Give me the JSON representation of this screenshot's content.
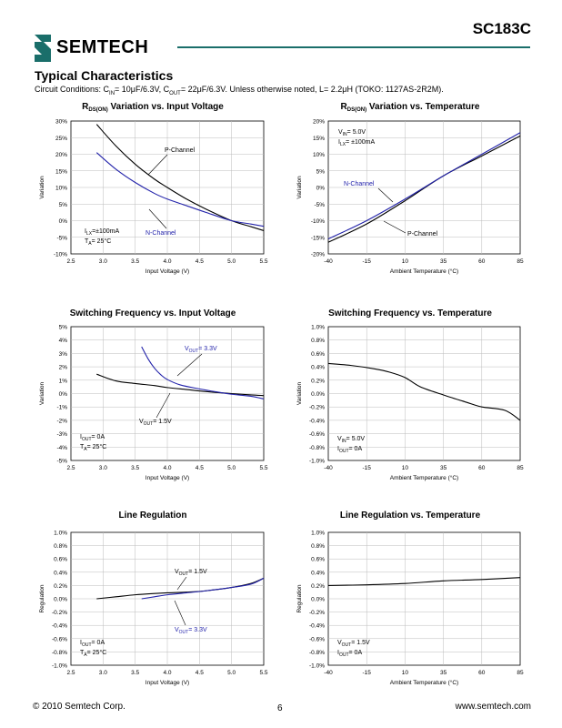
{
  "header": {
    "part_number": "SC183C",
    "logo_text": "SEMTECH",
    "brand_color": "#1a6e6a"
  },
  "section": {
    "title": "Typical Characteristics",
    "conditions": "Circuit Conditions: C₀ ... (see conditions parts)",
    "conditions_parts": {
      "a": "Circuit Conditions: C",
      "a_sub": "IN",
      "b": "= 10μF/6.3V, C",
      "b_sub": "OUT",
      "c": "= 22μF/6.3V. Unless otherwise noted, L= 2.2μH (TOKO: 1127AS-2R2M)."
    }
  },
  "footer": {
    "copyright": "© 2010 Semtech Corp.",
    "page": "6",
    "website": "www.semtech.com"
  },
  "chart_data": [
    {
      "type": "line",
      "title": "R",
      "title_sub": "DS(ON)",
      "title_rest": " Variation vs. Input Voltage",
      "xlabel": "Input Voltage (V)",
      "ylabel": "Variation",
      "x_ticks": [
        "2.5",
        "3.0",
        "3.5",
        "4.0",
        "4.5",
        "5.0",
        "5.5"
      ],
      "y_ticks": [
        "30%",
        "25%",
        "20%",
        "15%",
        "10%",
        "5%",
        "0%",
        "-5%",
        "-10%"
      ],
      "xlim": [
        2.5,
        5.5
      ],
      "ylim": [
        -10,
        30
      ],
      "annotations": [
        "Iₗₓ=±100mA",
        "Tₐ= 25°C"
      ],
      "ann_lines": [
        "I",
        "LX",
        "=±100mA",
        "T",
        "A",
        "= 25°C"
      ],
      "series": [
        {
          "name": "P-Channel",
          "color": "#000000",
          "x": [
            2.9,
            3.2,
            3.5,
            3.8,
            4.0,
            4.3,
            4.6,
            5.0,
            5.3,
            5.5
          ],
          "y": [
            29,
            22.5,
            17,
            12.5,
            10,
            6.5,
            3.5,
            0,
            -1.8,
            -3
          ]
        },
        {
          "name": "N-Channel",
          "color": "#2222aa",
          "x": [
            2.9,
            3.2,
            3.5,
            3.8,
            4.0,
            4.3,
            4.6,
            5.0,
            5.3,
            5.5
          ],
          "y": [
            20.5,
            15.5,
            11.5,
            8.2,
            6.5,
            4.5,
            2.5,
            0,
            -1,
            -1.7
          ]
        }
      ]
    },
    {
      "type": "line",
      "title": "R",
      "title_sub": "DS(ON)",
      "title_rest": " Variation vs. Temperature",
      "xlabel": "Ambient Temperature (°C)",
      "ylabel": "Variation",
      "x_ticks": [
        "-40",
        "-15",
        "10",
        "35",
        "60",
        "85"
      ],
      "y_ticks": [
        "20%",
        "15%",
        "10%",
        "5%",
        "0%",
        "-5%",
        "-10%",
        "-15%",
        "-20%"
      ],
      "xlim": [
        -40,
        85
      ],
      "ylim": [
        -20,
        20
      ],
      "series": [
        {
          "name": "P-Channel",
          "color": "#000000",
          "x": [
            -40,
            -15,
            10,
            35,
            60,
            85
          ],
          "y": [
            -16.5,
            -11,
            -4,
            3.5,
            9.5,
            15.5
          ]
        },
        {
          "name": "N-Channel",
          "color": "#2222aa",
          "x": [
            -40,
            -15,
            10,
            35,
            60,
            85
          ],
          "y": [
            -15.5,
            -10,
            -3.5,
            3.5,
            10,
            16.5
          ]
        }
      ]
    },
    {
      "type": "line",
      "title": "Switching Frequency vs. Input Voltage",
      "xlabel": "Input Voltage (V)",
      "ylabel": "Variation",
      "x_ticks": [
        "2.5",
        "3.0",
        "3.5",
        "4.0",
        "4.5",
        "5.0",
        "5.5"
      ],
      "y_ticks": [
        "5%",
        "4%",
        "3%",
        "2%",
        "1%",
        "0%",
        "-1%",
        "-2%",
        "-3%",
        "-4%",
        "-5%"
      ],
      "xlim": [
        2.5,
        5.5
      ],
      "ylim": [
        -5,
        5
      ],
      "series": [
        {
          "name": "V_OUT= 1.5V",
          "color": "#000000",
          "x": [
            2.9,
            3.2,
            3.5,
            3.8,
            4.0,
            4.3,
            4.6,
            5.0,
            5.3,
            5.5
          ],
          "y": [
            1.45,
            0.95,
            0.75,
            0.6,
            0.45,
            0.3,
            0.15,
            0,
            -0.1,
            -0.15
          ]
        },
        {
          "name": "V_OUT= 3.3V",
          "color": "#2222aa",
          "x": [
            3.6,
            3.7,
            3.8,
            3.9,
            4.0,
            4.2,
            4.5,
            4.8,
            5.0,
            5.3,
            5.5
          ],
          "y": [
            3.5,
            2.6,
            1.9,
            1.4,
            1.05,
            0.65,
            0.35,
            0.1,
            -0.05,
            -0.2,
            -0.4
          ]
        }
      ]
    },
    {
      "type": "line",
      "title": "Switching Frequency vs. Temperature",
      "xlabel": "Ambient Temperature (°C)",
      "ylabel": "Variation",
      "x_ticks": [
        "-40",
        "-15",
        "10",
        "35",
        "60",
        "85"
      ],
      "y_ticks": [
        "1.0%",
        "0.8%",
        "0.6%",
        "0.4%",
        "0.2%",
        "0.0%",
        "-0.2%",
        "-0.4%",
        "-0.6%",
        "-0.8%",
        "-1.0%"
      ],
      "xlim": [
        -40,
        85
      ],
      "ylim": [
        -1,
        1
      ],
      "series": [
        {
          "name": "",
          "color": "#000000",
          "x": [
            -40,
            -25,
            -10,
            0,
            10,
            20,
            35,
            50,
            60,
            75,
            85
          ],
          "y": [
            0.45,
            0.42,
            0.37,
            0.32,
            0.24,
            0.1,
            -0.02,
            -0.13,
            -0.2,
            -0.25,
            -0.4
          ]
        }
      ]
    },
    {
      "type": "line",
      "title": "Line Regulation",
      "xlabel": "Input Voltage (V)",
      "ylabel": "Regulation",
      "x_ticks": [
        "2.5",
        "3.0",
        "3.5",
        "4.0",
        "4.5",
        "5.0",
        "5.5"
      ],
      "y_ticks": [
        "1.0%",
        "0.8%",
        "0.6%",
        "0.4%",
        "0.2%",
        "0.0%",
        "-0.2%",
        "-0.4%",
        "-0.6%",
        "-0.8%",
        "-1.0%"
      ],
      "xlim": [
        2.5,
        5.5
      ],
      "ylim": [
        -1,
        1
      ],
      "series": [
        {
          "name": "V_OUT= 1.5V",
          "color": "#000000",
          "x": [
            2.9,
            3.2,
            3.5,
            3.8,
            4.0,
            4.3,
            4.6,
            5.0,
            5.3,
            5.5
          ],
          "y": [
            0.0,
            0.03,
            0.06,
            0.08,
            0.09,
            0.1,
            0.12,
            0.17,
            0.23,
            0.31
          ]
        },
        {
          "name": "V_OUT= 3.3V",
          "color": "#2222aa",
          "x": [
            3.6,
            3.8,
            4.0,
            4.3,
            4.6,
            5.0,
            5.3,
            5.5
          ],
          "y": [
            0.0,
            0.03,
            0.06,
            0.09,
            0.12,
            0.17,
            0.22,
            0.31
          ]
        }
      ]
    },
    {
      "type": "line",
      "title": "Line Regulation vs. Temperature",
      "xlabel": "Ambient Temperature (°C)",
      "ylabel": "Regulation",
      "x_ticks": [
        "-40",
        "-15",
        "10",
        "35",
        "60",
        "85"
      ],
      "y_ticks": [
        "1.0%",
        "0.8%",
        "0.6%",
        "0.4%",
        "0.2%",
        "0.0%",
        "-0.2%",
        "-0.4%",
        "-0.6%",
        "-0.8%",
        "-1.0%"
      ],
      "xlim": [
        -40,
        85
      ],
      "ylim": [
        -1,
        1
      ],
      "series": [
        {
          "name": "",
          "color": "#000000",
          "x": [
            -40,
            -15,
            10,
            35,
            60,
            85
          ],
          "y": [
            0.2,
            0.21,
            0.23,
            0.27,
            0.29,
            0.32
          ]
        }
      ]
    }
  ],
  "chart_annotations": {
    "c1_cond1": "I",
    "c1_cond1_sub": "LX",
    "c1_cond1_rest": "=±100mA",
    "c1_cond2": "T",
    "c1_cond2_sub": "A",
    "c1_cond2_rest": "= 25°C",
    "c1_p_label": "P-Channel",
    "c1_n_label": "N-Channel",
    "c2_cond1": "V",
    "c2_cond1_sub": "IN",
    "c2_cond1_rest": "= 5.0V",
    "c2_cond2": "I",
    "c2_cond2_sub": "LX",
    "c2_cond2_rest": "= ±100mA",
    "c2_n_label": "N-Channel",
    "c2_p_label": "P-Channel",
    "c3_v33": "V",
    "c3_v33_sub": "OUT",
    "c3_v33_rest": "= 3.3V",
    "c3_v15": "V",
    "c3_v15_sub": "OUT",
    "c3_v15_rest": "= 1.5V",
    "c3_cond1": "I",
    "c3_cond1_sub": "OUT",
    "c3_cond1_rest": "= 0A",
    "c3_cond2": "T",
    "c3_cond2_sub": "A",
    "c3_cond2_rest": "= 25°C",
    "c4_cond1": "V",
    "c4_cond1_sub": "IN",
    "c4_cond1_rest": "= 5.0V",
    "c4_cond2": "I",
    "c4_cond2_sub": "OUT",
    "c4_cond2_rest": "= 0A",
    "c5_v15": "V",
    "c5_v15_sub": "OUT",
    "c5_v15_rest": "= 1.5V",
    "c5_v33": "V",
    "c5_v33_sub": "OUT",
    "c5_v33_rest": "= 3.3V",
    "c5_cond1": "I",
    "c5_cond1_sub": "OUT",
    "c5_cond1_rest": "= 0A",
    "c5_cond2": "T",
    "c5_cond2_sub": "A",
    "c5_cond2_rest": "= 25°C",
    "c6_cond1": "V",
    "c6_cond1_sub": "OUT",
    "c6_cond1_rest": "= 1.5V",
    "c6_cond2": "I",
    "c6_cond2_sub": "OUT",
    "c6_cond2_rest": "= 0A"
  }
}
